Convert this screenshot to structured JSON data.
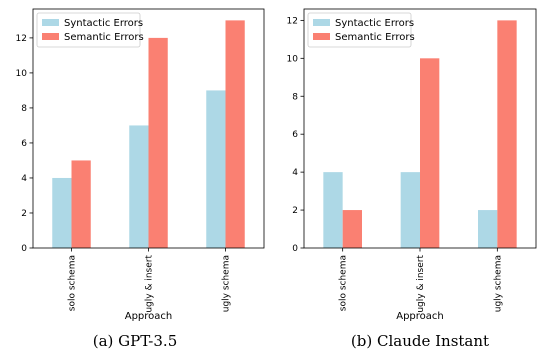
{
  "colors": {
    "syntactic": "#add8e6",
    "semantic": "#fa8072"
  },
  "chart_data": [
    {
      "type": "bar",
      "caption": "(a) GPT-3.5",
      "categories": [
        "solo schema",
        "ugly & insert",
        "ugly schema"
      ],
      "series": [
        {
          "name": "Syntactic Errors",
          "values": [
            4,
            7,
            9
          ]
        },
        {
          "name": "Semantic Errors",
          "values": [
            5,
            12,
            13
          ]
        }
      ],
      "xlabel": "Approach",
      "ylabel": "",
      "ylim": [
        0,
        13.65
      ],
      "yticks": [
        0,
        2,
        4,
        6,
        8,
        10,
        12
      ],
      "legend": "top-left",
      "grid": false
    },
    {
      "type": "bar",
      "caption": "(b) Claude Instant",
      "categories": [
        "solo schema",
        "ugly & insert",
        "ugly schema"
      ],
      "series": [
        {
          "name": "Syntactic Errors",
          "values": [
            4,
            4,
            2
          ]
        },
        {
          "name": "Semantic Errors",
          "values": [
            2,
            10,
            12
          ]
        }
      ],
      "xlabel": "Approach",
      "ylabel": "",
      "ylim": [
        0,
        12.6
      ],
      "yticks": [
        0,
        2,
        4,
        6,
        8,
        10,
        12
      ],
      "legend": "top-left",
      "grid": false
    }
  ]
}
